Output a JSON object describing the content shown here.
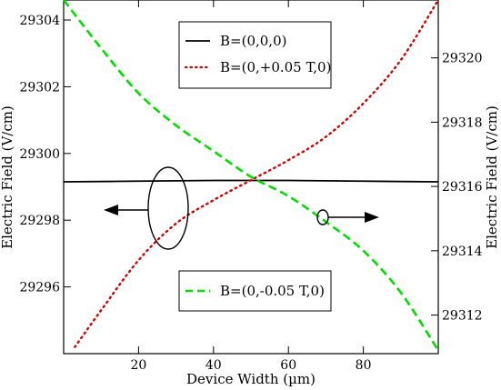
{
  "chart_data": {
    "type": "line",
    "xlabel": "Device Width (µm)",
    "ylabel_left": "Electric Field (V/cm)",
    "ylabel_right": "Electric Field (V/cm)",
    "xlim": [
      0,
      100
    ],
    "ylim_left": [
      29294,
      29304.6
    ],
    "ylim_right": [
      29310.8,
      29321.8
    ],
    "x_ticks": [
      20,
      40,
      60,
      80
    ],
    "x_tick_labels": [
      "20",
      "40",
      "60",
      "80"
    ],
    "y_left_ticks": [
      29296,
      29298,
      29300,
      29302,
      29304
    ],
    "y_left_tick_labels": [
      "29296",
      "29298",
      "29300",
      "29302",
      "29304"
    ],
    "y_right_ticks": [
      29312,
      29314,
      29316,
      29318,
      29320
    ],
    "y_right_tick_labels": [
      "29312",
      "29314",
      "29316",
      "29318",
      "29320"
    ],
    "grid": false,
    "series": [
      {
        "name": "B=(0,0,0)",
        "axis": "left",
        "color": "#000000",
        "style": "solid",
        "x": [
          0,
          20,
          40,
          50,
          60,
          80,
          100
        ],
        "y": [
          29299.15,
          29299.17,
          29299.19,
          29299.19,
          29299.19,
          29299.17,
          29299.15
        ]
      },
      {
        "name": "B=(0,+0.05 T,0)",
        "axis": "left",
        "color": "#d00000",
        "style": "dotted",
        "x": [
          3,
          10,
          20,
          30,
          40,
          50,
          60,
          70,
          80,
          90,
          100
        ],
        "y": [
          29294.2,
          29295.3,
          29296.8,
          29297.9,
          29298.6,
          29299.2,
          29299.8,
          29300.5,
          29301.5,
          29302.8,
          29304.6
        ]
      },
      {
        "name": "B=(0,-0.05 T,0)",
        "axis": "right",
        "color": "#00dd00",
        "style": "dashed",
        "x": [
          0,
          10,
          20,
          30,
          40,
          50,
          60,
          70,
          80,
          90,
          100
        ],
        "y": [
          29321.8,
          29320.3,
          29318.9,
          29317.9,
          29317.1,
          29316.3,
          29315.7,
          29314.9,
          29314.0,
          29312.7,
          29310.9
        ]
      }
    ],
    "legend_entries": [
      {
        "series": "B=(0,0,0)",
        "placement": "top-center"
      },
      {
        "series": "B=(0,+0.05 T,0)",
        "placement": "top-center"
      },
      {
        "series": "B=(0,-0.05 T,0)",
        "placement": "bottom-center"
      }
    ],
    "annotations": [
      {
        "kind": "ellipse-with-arrow",
        "points_to": "left axis",
        "near_x": 28,
        "near_y": 29298.5
      },
      {
        "kind": "ellipse-with-arrow",
        "points_to": "right axis",
        "near_x": 69,
        "near_y": 29298.2
      }
    ]
  }
}
